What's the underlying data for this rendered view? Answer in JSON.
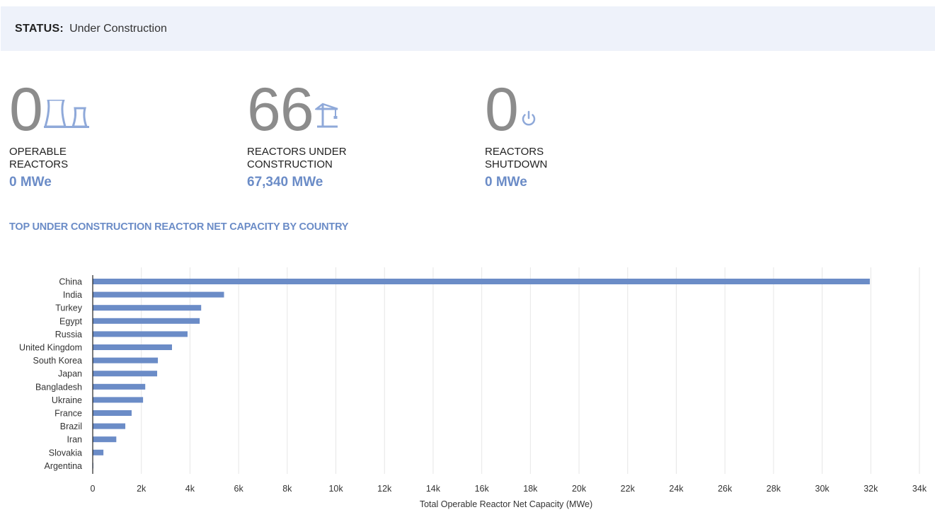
{
  "status": {
    "label": "STATUS:",
    "value": "Under Construction"
  },
  "stats": [
    {
      "number": "0",
      "label_line1": "OPERABLE",
      "label_line2": "REACTORS",
      "mwe": "0 MWe",
      "icon": "cooling-tower-icon"
    },
    {
      "number": "66",
      "label_line1": "REACTORS UNDER",
      "label_line2": "CONSTRUCTION",
      "mwe": "67,340 MWe",
      "icon": "crane-icon"
    },
    {
      "number": "0",
      "label_line1": "REACTORS",
      "label_line2": "SHUTDOWN",
      "mwe": "0 MWe",
      "icon": "power-icon"
    }
  ],
  "colors": {
    "accent": "#6b8cc7",
    "number_gray": "#8c8c8c",
    "status_bg": "#eef2fa"
  },
  "chart_title": "TOP UNDER CONSTRUCTION REACTOR NET CAPACITY BY COUNTRY",
  "chart_data": {
    "type": "bar",
    "orientation": "horizontal",
    "title": "TOP UNDER CONSTRUCTION REACTOR NET CAPACITY BY COUNTRY",
    "xlabel": "Total Operable Reactor Net Capacity (MWe)",
    "ylabel": "",
    "xlim": [
      0,
      34000
    ],
    "xticks": [
      0,
      2000,
      4000,
      6000,
      8000,
      10000,
      12000,
      14000,
      16000,
      18000,
      20000,
      22000,
      24000,
      26000,
      28000,
      30000,
      32000,
      34000
    ],
    "xtick_labels": [
      "0",
      "2k",
      "4k",
      "6k",
      "8k",
      "10k",
      "12k",
      "14k",
      "16k",
      "18k",
      "20k",
      "22k",
      "24k",
      "26k",
      "28k",
      "30k",
      "32k",
      "34k"
    ],
    "categories": [
      "China",
      "India",
      "Turkey",
      "Egypt",
      "Russia",
      "United Kingdom",
      "South Korea",
      "Japan",
      "Bangladesh",
      "Ukraine",
      "France",
      "Brazil",
      "Iran",
      "Slovakia",
      "Argentina"
    ],
    "values": [
      31960,
      5400,
      4460,
      4400,
      3900,
      3260,
      2680,
      2650,
      2160,
      2070,
      1600,
      1340,
      970,
      440,
      25
    ],
    "grid": true,
    "bar_color": "#6b8cc7"
  }
}
